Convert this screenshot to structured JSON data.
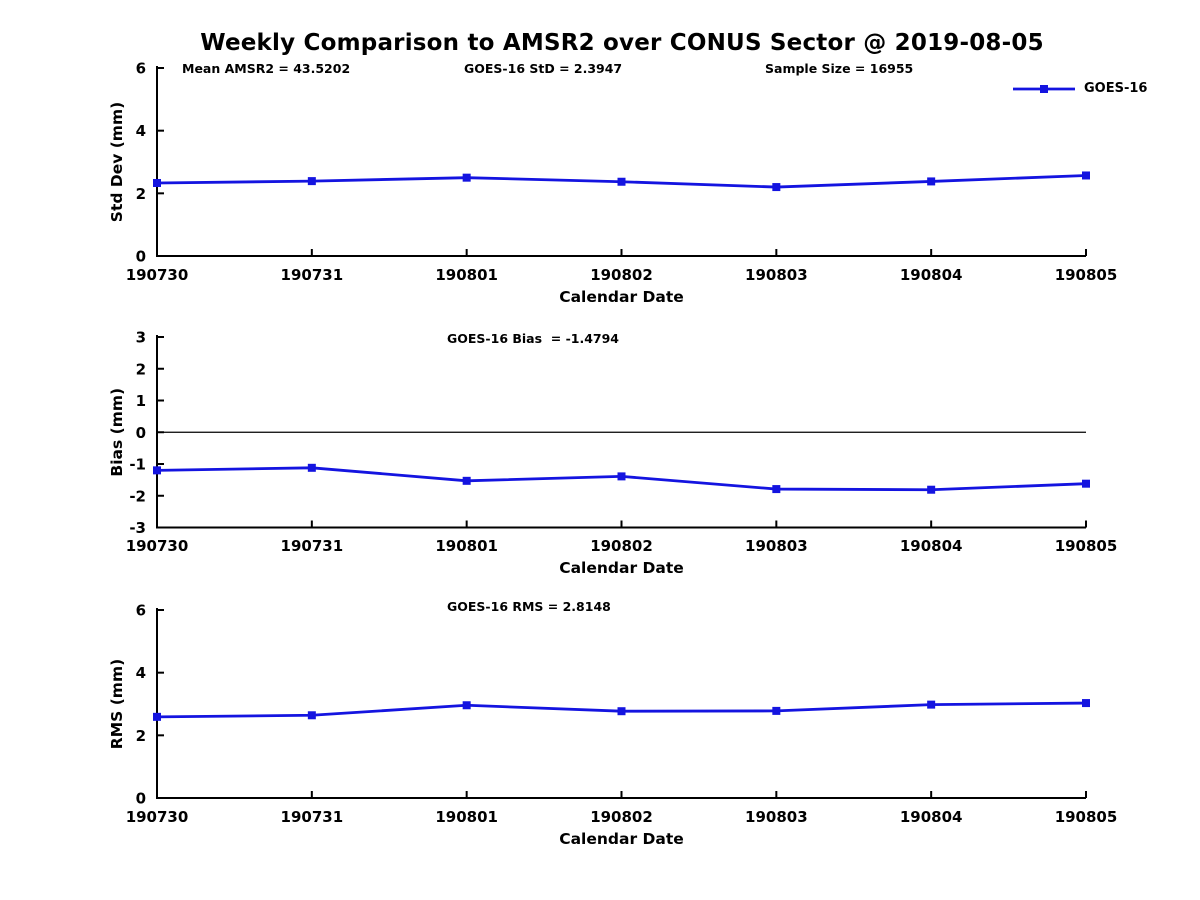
{
  "figure_title": "Weekly Comparison to AMSR2 over CONUS Sector @ 2019-08-05",
  "legend": {
    "label": "GOES-16"
  },
  "colors": {
    "series": "#1414e0",
    "axis": "#000000",
    "zero_line": "#000000",
    "background": "#ffffff"
  },
  "chart_data": [
    {
      "type": "line",
      "annotations": [
        "Mean AMSR2 = 43.5202",
        "GOES-16 StD = 2.3947",
        "Sample Size = 16955"
      ],
      "x": [
        "190730",
        "190731",
        "190801",
        "190802",
        "190803",
        "190804",
        "190805"
      ],
      "series": [
        {
          "name": "GOES-16",
          "values": [
            2.33,
            2.39,
            2.5,
            2.37,
            2.2,
            2.38,
            2.57
          ]
        }
      ],
      "xlabel": "Calendar Date",
      "ylabel": "Std Dev (mm)",
      "ylim": [
        0,
        6
      ],
      "yticks": [
        0,
        2,
        4,
        6
      ],
      "zero_line": false,
      "grid": false,
      "legend_position": "top-right-outside"
    },
    {
      "type": "line",
      "annotations": [
        "GOES-16 Bias  = -1.4794"
      ],
      "x": [
        "190730",
        "190731",
        "190801",
        "190802",
        "190803",
        "190804",
        "190805"
      ],
      "series": [
        {
          "name": "GOES-16",
          "values": [
            -1.2,
            -1.12,
            -1.53,
            -1.39,
            -1.79,
            -1.81,
            -1.62
          ]
        }
      ],
      "xlabel": "Calendar Date",
      "ylabel": "Bias (mm)",
      "ylim": [
        -3,
        3
      ],
      "yticks": [
        -3,
        -2,
        -1,
        0,
        1,
        2,
        3
      ],
      "zero_line": true,
      "grid": false
    },
    {
      "type": "line",
      "annotations": [
        "GOES-16 RMS = 2.8148"
      ],
      "x": [
        "190730",
        "190731",
        "190801",
        "190802",
        "190803",
        "190804",
        "190805"
      ],
      "series": [
        {
          "name": "GOES-16",
          "values": [
            2.59,
            2.64,
            2.96,
            2.77,
            2.78,
            2.98,
            3.03
          ]
        }
      ],
      "xlabel": "Calendar Date",
      "ylabel": "RMS (mm)",
      "ylim": [
        0,
        6
      ],
      "yticks": [
        0,
        2,
        4,
        6
      ],
      "zero_line": false,
      "grid": false
    }
  ]
}
